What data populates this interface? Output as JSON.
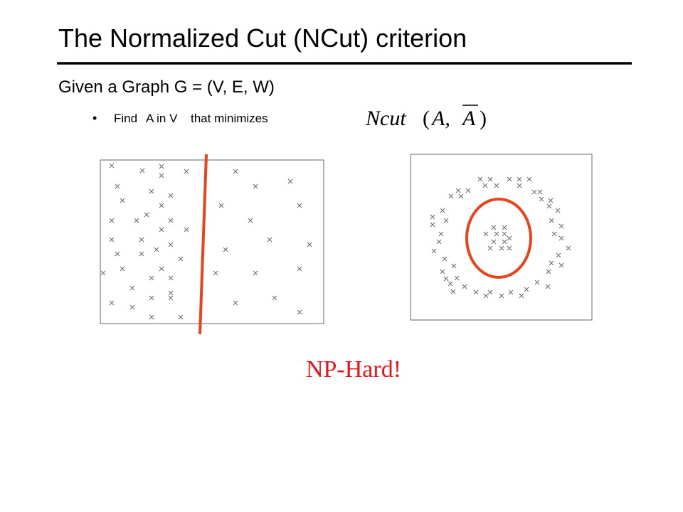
{
  "title": "The Normalized Cut (NCut) criterion",
  "subtitle": "Given a Graph G = (V, E, W)",
  "bullet": {
    "parts": [
      "Find",
      "A in V",
      "that minimizes"
    ]
  },
  "formula": {
    "function": "Ncut",
    "open": "(",
    "arg1": "A,",
    "arg2": "A",
    "close": ")"
  },
  "note": "NP-Hard!"
}
